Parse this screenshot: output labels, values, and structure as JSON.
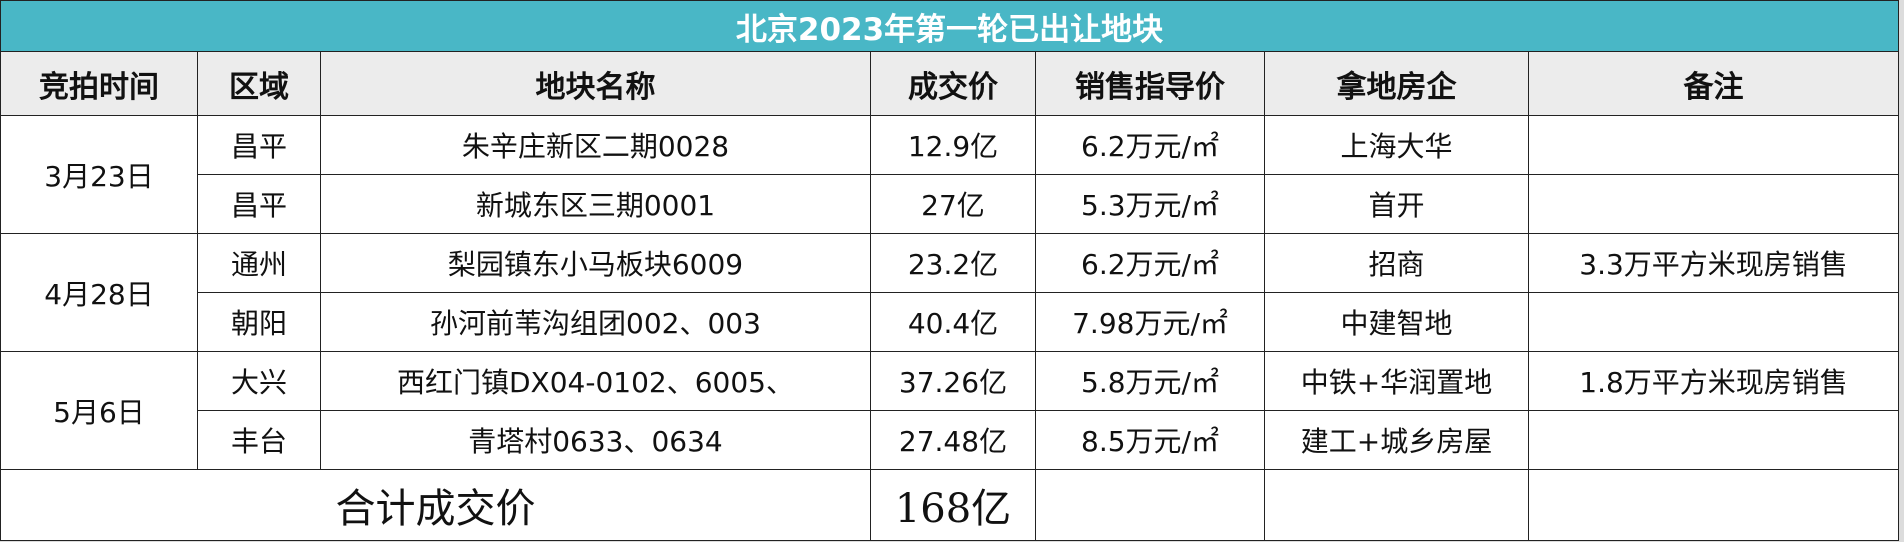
{
  "title": "北京2023年第一轮已出让地块",
  "table": {
    "headers": [
      "竞拍时间",
      "区域",
      "地块名称",
      "成交价",
      "销售指导价",
      "拿地房企",
      "备注"
    ],
    "groups": [
      {
        "date": "3月23日",
        "rows": [
          {
            "district": "昌平",
            "plot": "朱辛庄新区二期0028",
            "price": "12.9亿",
            "guide": "6.2万元/㎡",
            "developer": "上海大华"
          },
          {
            "district": "昌平",
            "plot": "新城东区三期0001",
            "price": "27亿",
            "guide": "5.3万元/㎡",
            "developer": "首开"
          }
        ]
      },
      {
        "date": "4月28日",
        "rows": [
          {
            "district": "通州",
            "plot": "梨园镇东小马板块6009",
            "price": "23.2亿",
            "guide": "6.2万元/㎡",
            "developer": "招商",
            "remark": "3.3万平方米现房销售"
          },
          {
            "district": "朝阳",
            "plot": "孙河前苇沟组团002、003",
            "price": "40.4亿",
            "guide": "7.98万元/㎡",
            "developer": "中建智地"
          }
        ]
      },
      {
        "date": "5月6日",
        "rows": [
          {
            "district": "大兴",
            "plot": "西红门镇DX04-0102、6005、",
            "price": "37.26亿",
            "guide": "5.8万元/㎡",
            "developer": "中铁+华润置地",
            "remark": "1.8万平方米现房销售"
          },
          {
            "district": "丰台",
            "plot": "青塔村0633、0634",
            "price": "27.48亿",
            "guide": "8.5万元/㎡",
            "developer": "建工+城乡房屋"
          }
        ]
      }
    ],
    "total": {
      "label": "合计成交价",
      "value": "168亿"
    }
  }
}
